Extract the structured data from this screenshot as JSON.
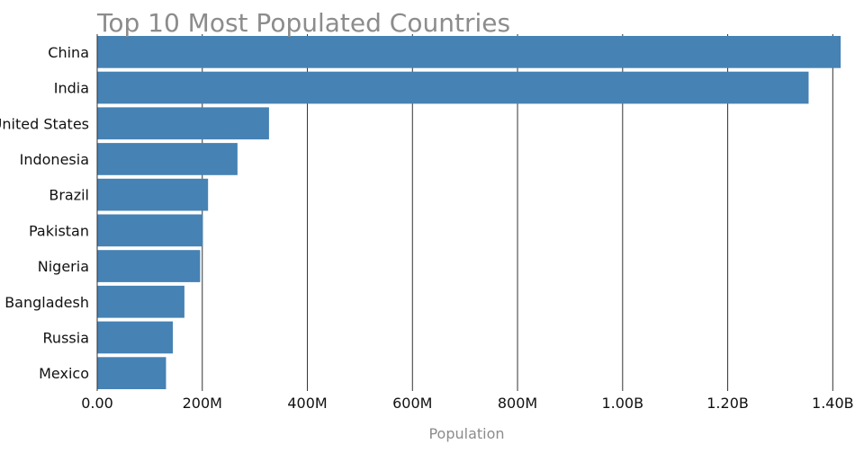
{
  "chart_data": {
    "type": "bar",
    "orientation": "horizontal",
    "title": "Top 10 Most Populated Countries",
    "xlabel": "Population",
    "ylabel": "",
    "categories": [
      "China",
      "India",
      "United States",
      "Indonesia",
      "Brazil",
      "Pakistan",
      "Nigeria",
      "Bangladesh",
      "Russia",
      "Mexico"
    ],
    "values": [
      1415000000,
      1354000000,
      327000000,
      267000000,
      211000000,
      201000000,
      196000000,
      166000000,
      144000000,
      131000000
    ],
    "xlim": [
      0,
      1420000000
    ],
    "xticks": [
      0,
      200000000,
      400000000,
      600000000,
      800000000,
      1000000000,
      1200000000,
      1400000000
    ],
    "xtick_labels": [
      "0.00",
      "200M",
      "400M",
      "600M",
      "800M",
      "1.00B",
      "1.20B",
      "1.40B"
    ],
    "grid": "vertical",
    "colors": {
      "bar": "#4682b4",
      "grid": "#333333",
      "title": "#8c8c8c",
      "axis_label": "#8c8c8c",
      "tick_label": "#111111"
    }
  }
}
